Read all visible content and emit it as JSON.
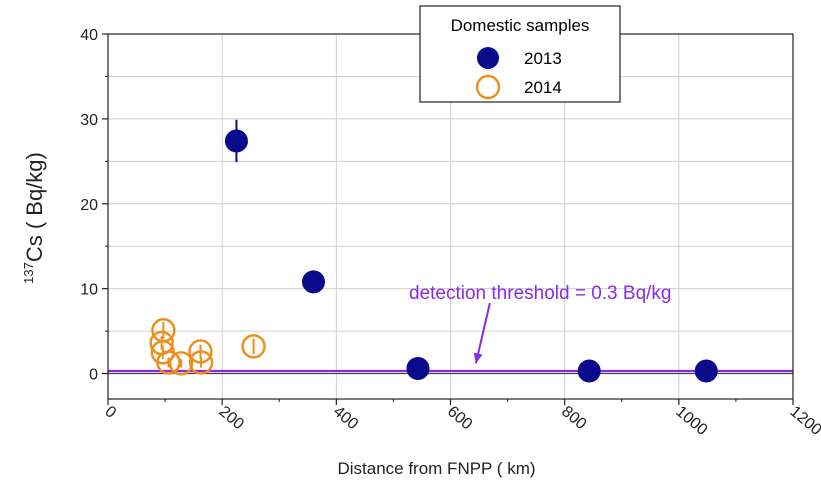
{
  "chart_data": {
    "type": "scatter",
    "xlabel": "Distance from FNPP  ( km)",
    "ylabel_sup": "137",
    "ylabel_main": "Cs   ( Bq/kg)",
    "xlim": [
      0,
      1200
    ],
    "ylim": [
      -3,
      40
    ],
    "xticks": [
      "0",
      "200",
      "400",
      "600",
      "800",
      "1000",
      "1200"
    ],
    "xtick_values": [
      0,
      200,
      400,
      600,
      800,
      1000,
      1200
    ],
    "yticks": [
      "0",
      "10",
      "20",
      "30",
      "40"
    ],
    "ytick_values": [
      0,
      10,
      20,
      30,
      40
    ],
    "grid": true,
    "legend": {
      "title": "Domestic samples",
      "placement": "top-center"
    },
    "series": [
      {
        "name": "2013",
        "color": "#0a0a8c",
        "marker": "filled-circle",
        "points": [
          {
            "x": 225,
            "y": 27.4,
            "err": 2.5
          },
          {
            "x": 360,
            "y": 10.8,
            "err": 0
          },
          {
            "x": 543,
            "y": 0.6,
            "err": 0
          },
          {
            "x": 843,
            "y": 0.3,
            "err": 0
          },
          {
            "x": 1048,
            "y": 0.3,
            "err": 0
          }
        ]
      },
      {
        "name": "2014",
        "color": "#f08c1a",
        "marker": "open-circle",
        "points": [
          {
            "x": 97,
            "y": 5.1,
            "err": 1.0
          },
          {
            "x": 94,
            "y": 3.6,
            "err": 0.8
          },
          {
            "x": 96,
            "y": 2.5,
            "err": 0.8
          },
          {
            "x": 106,
            "y": 1.3,
            "err": 0.6
          },
          {
            "x": 128,
            "y": 1.2,
            "err": 0.5
          },
          {
            "x": 162,
            "y": 2.6,
            "err": 0.8
          },
          {
            "x": 163,
            "y": 1.3,
            "err": 0.6
          },
          {
            "x": 255,
            "y": 3.2,
            "err": 0.9
          }
        ]
      }
    ],
    "threshold": {
      "value": 0.3,
      "color": "#8a2be2",
      "label": "detection threshold = 0.3 Bq/kg",
      "arrow_x": 655
    }
  }
}
